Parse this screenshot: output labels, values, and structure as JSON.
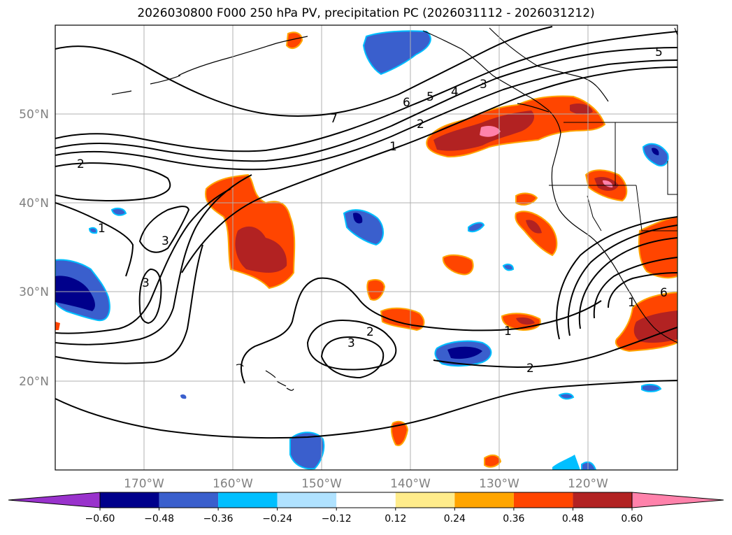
{
  "title": "2026030800 F000 250 hPa PV, precipitation PC (2026031112 - 2026031212)",
  "axes": {
    "lat_labels": [
      "50°N",
      "40°N",
      "30°N",
      "20°N"
    ],
    "lon_labels": [
      "170°W",
      "160°W",
      "150°W",
      "140°W",
      "130°W",
      "120°W"
    ]
  },
  "colorbar": {
    "colors": [
      "#9932cc",
      "#00008b",
      "#3a5fcd",
      "#00bfff",
      "#b0e2ff",
      "#ffffff",
      "#ffec8b",
      "#ffa500",
      "#ff4500",
      "#b22222",
      "#ff82ab"
    ],
    "ticks": [
      "−0.60",
      "−0.48",
      "−0.36",
      "−0.24",
      "−0.12",
      "0.12",
      "0.24",
      "0.36",
      "0.48",
      "0.60"
    ]
  },
  "contour_labels": [
    "7",
    "6",
    "5",
    "4",
    "3",
    "2",
    "1",
    "2",
    "1",
    "3",
    "3",
    "2",
    "3",
    "1",
    "2",
    "1",
    "6",
    "5"
  ]
}
